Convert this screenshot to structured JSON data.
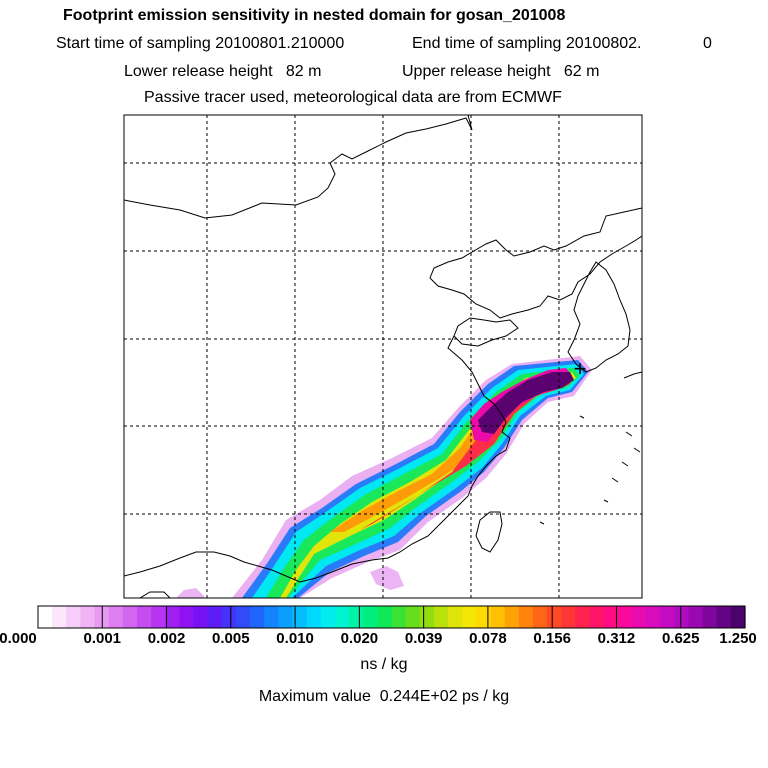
{
  "header": {
    "title": "Footprint emission sensitivity in nested domain for gosan_201008",
    "sampling_start_label": "Start time of sampling",
    "sampling_start": "20100801.210000",
    "sampling_end_label": "End time of sampling",
    "sampling_end": "20100802.",
    "sampling_end_extra": "0",
    "lower_release_label": "Lower release height",
    "lower_release_value": "82 m",
    "upper_release_label": "Upper release height",
    "upper_release_value": "62 m",
    "tracer_note": "Passive tracer used, meteorological data are from ECMWF"
  },
  "colorbar": {
    "tick_labels": [
      "0.000",
      "0.001",
      "0.002",
      "0.005",
      "0.010",
      "0.020",
      "0.039",
      "0.078",
      "0.156",
      "0.312",
      "0.625",
      "1.250"
    ],
    "colors": [
      "#ffffff",
      "#fce6fc",
      "#f6cdf9",
      "#f0b3f6",
      "#e79af2",
      "#dd7ff0",
      "#d266ee",
      "#c54cef",
      "#b535f0",
      "#a21ff2",
      "#8e12f4",
      "#7712f5",
      "#5e1df7",
      "#4632f9",
      "#314bfa",
      "#2166fb",
      "#1484fc",
      "#0b9ffd",
      "#06bdfd",
      "#00d8fd",
      "#00ecf0",
      "#00f4cf",
      "#00f2a6",
      "#00ee7f",
      "#10e857",
      "#3ae235",
      "#67de1c",
      "#92dd12",
      "#bbe10d",
      "#dfe508",
      "#f5e605",
      "#ffd904",
      "#ffc003",
      "#ffa304",
      "#ff840b",
      "#ff6516",
      "#ff4a25",
      "#ff3637",
      "#ff244d",
      "#ff1666",
      "#ff0c82",
      "#f90a9c",
      "#ea0bb0",
      "#d80cbd",
      "#c40cc2",
      "#b00bbf",
      "#9908b1",
      "#7f069c",
      "#640485",
      "#4a026c"
    ],
    "units": "ns / kg",
    "max_label": "Maximum value",
    "max_value": "0.244E+02",
    "max_units": "ps / kg"
  },
  "map": {
    "receptor_symbol": "+",
    "plume_colors": {
      "pink": "#e6a2f0",
      "blue": "#2a7bfa",
      "cyan": "#00e8f2",
      "green": "#18e85a",
      "yellow": "#e2e50a",
      "orange": "#ff9a08",
      "red": "#ff2d48",
      "magenta": "#ec0aa9",
      "dark": "#5a0270"
    }
  }
}
